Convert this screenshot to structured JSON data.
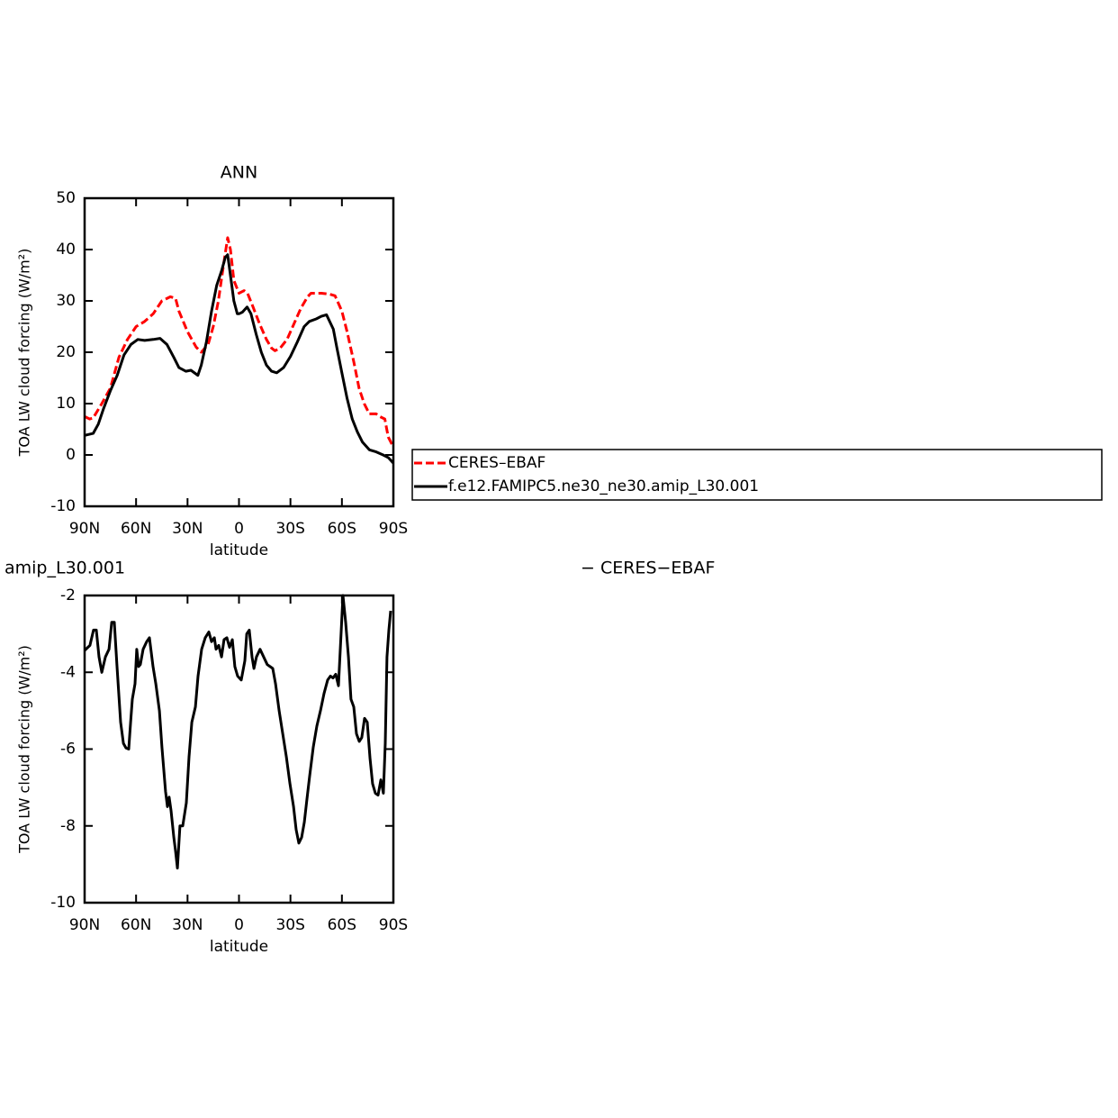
{
  "chart_data": [
    {
      "type": "line",
      "title": "ANN",
      "xlabel": "latitude",
      "ylabel": "TOA LW cloud forcing (W/m²)",
      "xlim": [
        90,
        -90
      ],
      "xticks": [
        {
          "value": 90,
          "label": "90N"
        },
        {
          "value": 60,
          "label": "60N"
        },
        {
          "value": 30,
          "label": "30N"
        },
        0,
        {
          "value": -30,
          "label": "30S"
        },
        {
          "value": -60,
          "label": "60S"
        },
        {
          "value": -90,
          "label": "90S"
        }
      ],
      "ylim": [
        -10,
        50
      ],
      "yticks": [
        -10,
        0,
        10,
        20,
        30,
        40,
        50
      ],
      "legend": true,
      "series": [
        {
          "name": "CERES–EBAF",
          "color": "#ff0000",
          "dashed": true,
          "x": [
            90,
            87,
            85,
            80,
            75,
            70,
            65,
            60,
            55,
            50,
            45,
            40,
            37,
            35,
            30,
            25,
            22,
            18,
            15,
            12,
            9,
            6.6,
            5,
            3,
            0,
            -3,
            -5,
            -8,
            -12,
            -16,
            -19,
            -21,
            -24,
            -28,
            -32,
            -36,
            -40,
            -42,
            -48,
            -53,
            -56,
            -60,
            -63,
            -67,
            -70,
            -73,
            -76,
            -80,
            -82,
            -85,
            -87,
            -90
          ],
          "values": [
            7.5,
            7,
            7.2,
            10,
            13,
            19,
            22.5,
            25,
            26,
            27.5,
            30,
            30.8,
            30.5,
            28,
            24,
            21,
            20,
            21.5,
            25,
            30,
            37,
            42.3,
            40,
            34,
            31.5,
            32,
            31.5,
            29,
            25.5,
            22.5,
            20.8,
            20.3,
            20.8,
            22.5,
            25.5,
            28.5,
            30.8,
            31.5,
            31.5,
            31.3,
            31,
            28,
            24,
            18,
            13,
            10,
            8,
            8,
            7.5,
            7,
            3.5,
            1.5
          ]
        },
        {
          "name": "f.e12.FAMIPC5.ne30_ne30.amip_L30.001",
          "color": "#000000",
          "dashed": false,
          "x": [
            90,
            85,
            82,
            79,
            75,
            71,
            67,
            63,
            59,
            55,
            50,
            46,
            42,
            38,
            35,
            31,
            28,
            24,
            22,
            19,
            16,
            13,
            10,
            8,
            6.6,
            5,
            3,
            1,
            0,
            -2,
            -4.7,
            -7,
            -10,
            -13,
            -16,
            -19,
            -22,
            -26,
            -30,
            -34,
            -38,
            -41,
            -45,
            -48,
            -51,
            -55,
            -57,
            -60,
            -63,
            -66,
            -69,
            -72,
            -76,
            -80,
            -84,
            -87,
            -90
          ],
          "values": [
            3.8,
            4.2,
            6,
            9,
            12.5,
            15.5,
            19.5,
            21.5,
            22.5,
            22.3,
            22.5,
            22.7,
            21.5,
            19,
            17,
            16.3,
            16.5,
            15.5,
            17.5,
            22,
            28,
            33,
            36,
            38.5,
            39,
            35,
            30,
            27.5,
            27.5,
            27.8,
            28.8,
            27.5,
            23.5,
            20,
            17.5,
            16.3,
            16,
            17,
            19.2,
            22,
            25,
            26,
            26.5,
            27,
            27.3,
            24.5,
            21,
            16,
            11,
            7,
            4.5,
            2.5,
            1,
            0.6,
            0,
            -0.5,
            -1.6
          ]
        }
      ]
    },
    {
      "type": "line",
      "title": "amip_L30.001",
      "subtitle": "− CERES−EBAF",
      "xlabel": "latitude",
      "ylabel": "TOA LW cloud forcing (W/m²)",
      "xlim": [
        90,
        -90
      ],
      "xticks": [
        {
          "value": 90,
          "label": "90N"
        },
        {
          "value": 60,
          "label": "60N"
        },
        {
          "value": 30,
          "label": "30N"
        },
        0,
        {
          "value": -30,
          "label": "30S"
        },
        {
          "value": -60,
          "label": "60S"
        },
        {
          "value": -90,
          "label": "90S"
        }
      ],
      "ylim": [
        -10,
        -2
      ],
      "yticks": [
        -10,
        -8,
        -6,
        -4,
        -2
      ],
      "color": "#000000",
      "x": [
        90,
        86.9,
        84.8,
        83.2,
        81.6,
        80,
        77.9,
        75.8,
        74.2,
        72.7,
        71.1,
        69,
        67.4,
        65.9,
        64.3,
        63.2,
        62.2,
        60.6,
        59.6,
        58.5,
        57.5,
        55.9,
        53.8,
        52.2,
        50.1,
        48.5,
        46.4,
        44.9,
        42.8,
        41.7,
        40.7,
        39.6,
        38,
        37,
        35.9,
        34.4,
        32.8,
        30.7,
        29.1,
        27.5,
        25.4,
        23.9,
        21.8,
        19.7,
        17.6,
        16,
        14.4,
        13.4,
        11.8,
        10.2,
        8.7,
        7.1,
        5.5,
        3.9,
        2.4,
        0.8,
        -1.3,
        -3.4,
        -4.5,
        -6,
        -7.6,
        -8.7,
        -10.2,
        -12.3,
        -14.4,
        -16.5,
        -18.1,
        -19.7,
        -21.3,
        -23.4,
        -25.5,
        -27.6,
        -29.7,
        -31.8,
        -33.3,
        -34.9,
        -36.5,
        -38.1,
        -39.6,
        -41.2,
        -43.3,
        -45.4,
        -47.5,
        -49.6,
        -51.7,
        -53.3,
        -54.8,
        -56.4,
        -58,
        -59.6,
        -60.6,
        -62.2,
        -63.8,
        -65.3,
        -66.9,
        -68.5,
        -70.1,
        -71.6,
        -73.2,
        -74.8,
        -76.4,
        -77.9,
        -79.5,
        -81.1,
        -82.7,
        -84.2,
        -85.3,
        -86.3,
        -87.4,
        -88.4
      ],
      "values": [
        -3.43,
        -3.3,
        -2.9,
        -2.9,
        -3.6,
        -4,
        -3.6,
        -3.4,
        -2.7,
        -2.7,
        -3.85,
        -5.3,
        -5.85,
        -5.97,
        -6,
        -5.3,
        -4.7,
        -4.3,
        -3.4,
        -3.85,
        -3.8,
        -3.4,
        -3.2,
        -3.1,
        -3.85,
        -4.3,
        -5,
        -5.95,
        -7.1,
        -7.5,
        -7.25,
        -7.6,
        -8.3,
        -8.65,
        -9.1,
        -8,
        -8,
        -7.4,
        -6.2,
        -5.3,
        -4.9,
        -4.1,
        -3.4,
        -3.1,
        -2.95,
        -3.2,
        -3.1,
        -3.4,
        -3.3,
        -3.6,
        -3.15,
        -3.1,
        -3.35,
        -3.15,
        -3.85,
        -4.1,
        -4.2,
        -3.7,
        -3,
        -2.9,
        -3.6,
        -3.9,
        -3.6,
        -3.4,
        -3.6,
        -3.8,
        -3.85,
        -3.9,
        -4.3,
        -5,
        -5.6,
        -6.2,
        -6.9,
        -7.5,
        -8.1,
        -8.45,
        -8.3,
        -7.9,
        -7.3,
        -6.7,
        -5.95,
        -5.4,
        -5,
        -4.55,
        -4.2,
        -4.1,
        -4.15,
        -4.05,
        -4.35,
        -2.9,
        -2,
        -2.7,
        -3.6,
        -4.7,
        -4.9,
        -5.6,
        -5.8,
        -5.7,
        -5.2,
        -5.3,
        -6.25,
        -6.9,
        -7.15,
        -7.2,
        -6.8,
        -7.15,
        -5.85,
        -3.6,
        -2.9,
        -2.4
      ]
    }
  ]
}
